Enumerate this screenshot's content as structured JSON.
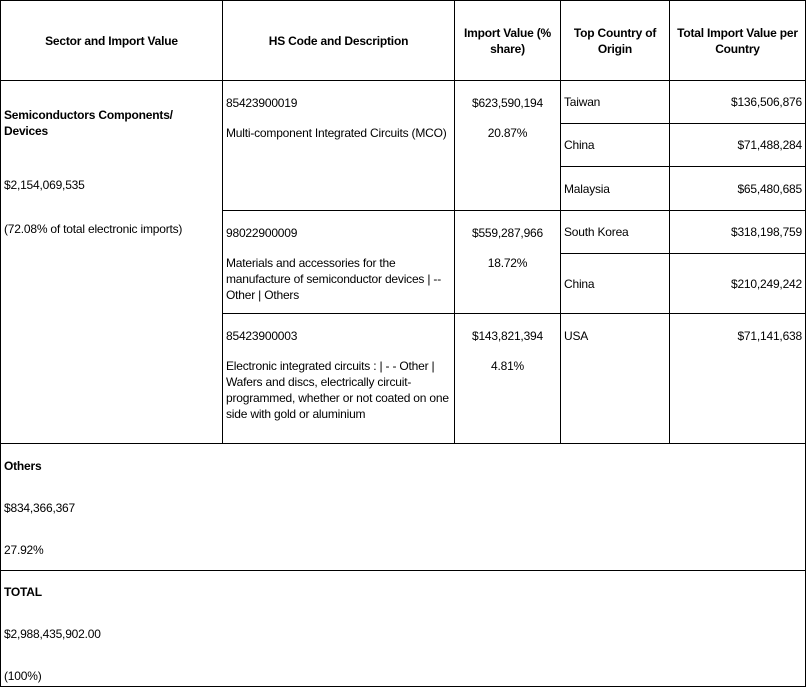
{
  "headers": [
    "Sector and  Import Value",
    "HS Code and Description",
    "Import Value (% share)",
    "Top Country of Origin",
    "Total Import Value per Country"
  ],
  "sector": {
    "name": "Semiconductors Components/ Devices",
    "value": "$2,154,069,535",
    "share": "(72.08% of total electronic imports)"
  },
  "products": [
    {
      "code": "85423900019",
      "description": "Multi-component Integrated Circuits (MCO)",
      "value": "$623,590,194",
      "share": "20.87%",
      "countries": [
        {
          "name": "Taiwan",
          "value": "$136,506,876"
        },
        {
          "name": "China",
          "value": "$71,488,284"
        },
        {
          "name": "Malaysia",
          "value": "$65,480,685"
        }
      ]
    },
    {
      "code": "98022900009",
      "description": "Materials and accessories for the manufacture of semiconductor devices  |  -- Other  |  Others",
      "value": "$559,287,966",
      "share": "18.72%",
      "countries": [
        {
          "name": "South Korea",
          "value": "$318,198,759"
        },
        {
          "name": "China",
          "value": "$210,249,242"
        }
      ]
    },
    {
      "code": "85423900003",
      "description": "Electronic integrated circuits :  |  - -  Other  |  Wafers and discs, electrically circuit-programmed, whether or not coated on one side with gold or aluminium",
      "value": "$143,821,394",
      "share": "4.81%",
      "countries": [
        {
          "name": "USA",
          "value": "$71,141,638"
        }
      ]
    }
  ],
  "others": {
    "label": "Others",
    "value": "$834,366,367",
    "share": "27.92%"
  },
  "total": {
    "label": "TOTAL",
    "value": "$2,988,435,902.00",
    "share": "(100%)"
  }
}
